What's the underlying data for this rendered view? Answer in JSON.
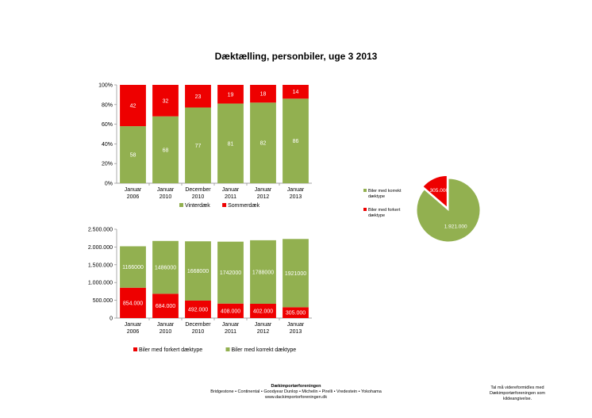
{
  "title": "Dæktælling, personbiler, uge 3 2013",
  "colors": {
    "green": "#92b050",
    "red": "#ee0000"
  },
  "chart_data": [
    {
      "type": "bar",
      "stacked": "percent",
      "categories": [
        [
          "Januar",
          "2006"
        ],
        [
          "Januar",
          "2010"
        ],
        [
          "December",
          "2010"
        ],
        [
          "Januar",
          "2011"
        ],
        [
          "Januar",
          "2012"
        ],
        [
          "Januar",
          "2013"
        ]
      ],
      "y_ticks": [
        "0%",
        "20%",
        "40%",
        "60%",
        "80%",
        "100%"
      ],
      "ylim": [
        0,
        100
      ],
      "series": [
        {
          "name": "Vinterdæk",
          "color": "#92b050",
          "values": [
            58,
            68,
            77,
            81,
            82,
            86
          ]
        },
        {
          "name": "Sommerdæk",
          "color": "#ee0000",
          "values": [
            42,
            32,
            23,
            19,
            18,
            14
          ]
        }
      ],
      "legend": "bottom"
    },
    {
      "type": "bar",
      "stacked": "absolute",
      "categories": [
        [
          "Januar",
          "2006"
        ],
        [
          "Januar",
          "2010"
        ],
        [
          "December",
          "2010"
        ],
        [
          "Januar",
          "2011"
        ],
        [
          "Januar",
          "2012"
        ],
        [
          "Januar",
          "2013"
        ]
      ],
      "y_ticks": [
        "0",
        "500.000",
        "1.000.000",
        "1.500.000",
        "2.000.000",
        "2.500.000"
      ],
      "ylim": [
        0,
        2500000
      ],
      "series": [
        {
          "name": "Biler med forkert dæktype",
          "color": "#ee0000",
          "values": [
            854000,
            684000,
            492000,
            408000,
            402000,
            305000
          ],
          "labels": [
            "854.000",
            "684.000",
            "492.000",
            "408.000",
            "402.000",
            "305.000"
          ]
        },
        {
          "name": "Biler med korrekt dæktype",
          "color": "#92b050",
          "values": [
            1166000,
            1486000,
            1668000,
            1742000,
            1788000,
            1921000
          ]
        }
      ],
      "legend": "bottom"
    },
    {
      "type": "pie",
      "slices": [
        {
          "name": "Biler med korrekt dæktype",
          "value": 1921000,
          "label": "1.921.000",
          "color": "#92b050"
        },
        {
          "name": "Biler med forkert dæktype",
          "value": 305000,
          "label": "305.000",
          "color": "#ee0000"
        }
      ],
      "legend": "left"
    }
  ],
  "footer": {
    "org": "Dækimportørforeningen",
    "brands": "Bridgestone • Continental • Goodyear Dunlop • Michelin • Pirelli • Vredestein • Yokohama",
    "url": "www.dackimportorforeningen.dk",
    "note_line1": "Tal må videreformidles med",
    "note_line2": "Dækimportørforeningen som",
    "note_line3": "kildeangivelse."
  }
}
